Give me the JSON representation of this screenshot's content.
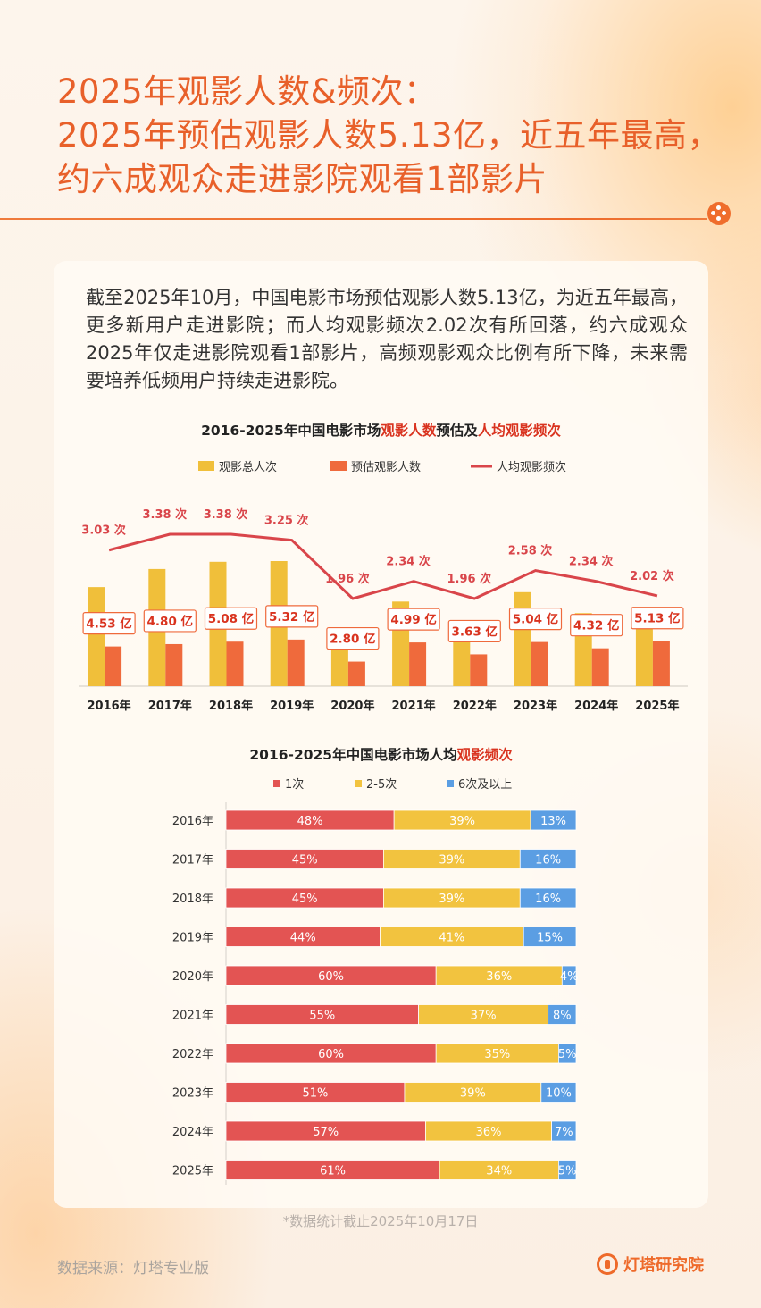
{
  "header": {
    "title_lines": [
      "2025年观影人数&频次：",
      "2025年预估观影人数5.13亿，近五年最高，",
      "约六成观众走进影院观看1部影片"
    ]
  },
  "intro_text": "截至2025年10月，中国电影市场预估观影人数5.13亿，为近五年最高，更多新用户走进影院；而人均观影频次2.02次有所回落，约六成观众2025年仅走进影院观看1部影片，高频观影观众比例有所下降，未来需要培养低频用户持续走进影院。",
  "chart_data": [
    {
      "type": "bar",
      "title_parts": [
        "2016-2025年中国电影市场",
        "观影人数",
        "预估及",
        "人均观影频次"
      ],
      "categories": [
        "2016年",
        "2017年",
        "2018年",
        "2019年",
        "2020年",
        "2021年",
        "2022年",
        "2023年",
        "2024年",
        "2025年"
      ],
      "series": [
        {
          "name": "观影总人次",
          "type": "bar",
          "color": "#f0bf3a",
          "values": [
            13.7,
            16.2,
            17.2,
            17.3,
            5.5,
            11.7,
            7.1,
            13.0,
            10.1,
            10.4
          ]
        },
        {
          "name": "预估观影人数",
          "type": "bar",
          "color": "#ef6a3c",
          "values": [
            4.53,
            4.8,
            5.08,
            5.32,
            2.8,
            4.99,
            3.63,
            5.04,
            4.32,
            5.13
          ],
          "labels": [
            "4.53 亿",
            "4.80 亿",
            "5.08 亿",
            "5.32 亿",
            "2.80 亿",
            "4.99 亿",
            "3.63 亿",
            "5.04 亿",
            "4.32 亿",
            "5.13 亿"
          ]
        },
        {
          "name": "人均观影频次",
          "type": "line",
          "color": "#d9454a",
          "values": [
            3.03,
            3.38,
            3.38,
            3.25,
            1.96,
            2.34,
            1.96,
            2.58,
            2.34,
            2.02
          ],
          "labels": [
            "3.03 次",
            "3.38 次",
            "3.38 次",
            "3.25 次",
            "1.96 次",
            "2.34 次",
            "1.96 次",
            "2.58 次",
            "2.34 次",
            "2.02 次"
          ]
        }
      ],
      "legend": [
        "观影总人次",
        "预估观影人数",
        "人均观影频次"
      ]
    },
    {
      "type": "bar",
      "orientation": "horizontal-stacked-100",
      "title_parts": [
        "2016-2025年中国电影市场人均",
        "观影频次"
      ],
      "categories": [
        "2016年",
        "2017年",
        "2018年",
        "2019年",
        "2020年",
        "2021年",
        "2022年",
        "2023年",
        "2024年",
        "2025年"
      ],
      "series": [
        {
          "name": "1次",
          "color": "#e35453",
          "values": [
            48,
            45,
            45,
            44,
            60,
            55,
            60,
            51,
            57,
            61
          ]
        },
        {
          "name": "2-5次",
          "color": "#f2c33f",
          "values": [
            39,
            39,
            39,
            41,
            36,
            37,
            35,
            39,
            36,
            34
          ]
        },
        {
          "name": "6次及以上",
          "color": "#5b9ee3",
          "values": [
            13,
            16,
            16,
            15,
            4,
            8,
            5,
            10,
            7,
            5
          ]
        }
      ],
      "legend": [
        "1次",
        "2-5次",
        "6次及以上"
      ]
    }
  ],
  "footnote": "*数据统计截止2025年10月17日",
  "source": "数据来源：灯塔专业版",
  "brand": "灯塔研究院",
  "colors": {
    "accent": "#ee6a2a",
    "title": "#e8602a"
  }
}
